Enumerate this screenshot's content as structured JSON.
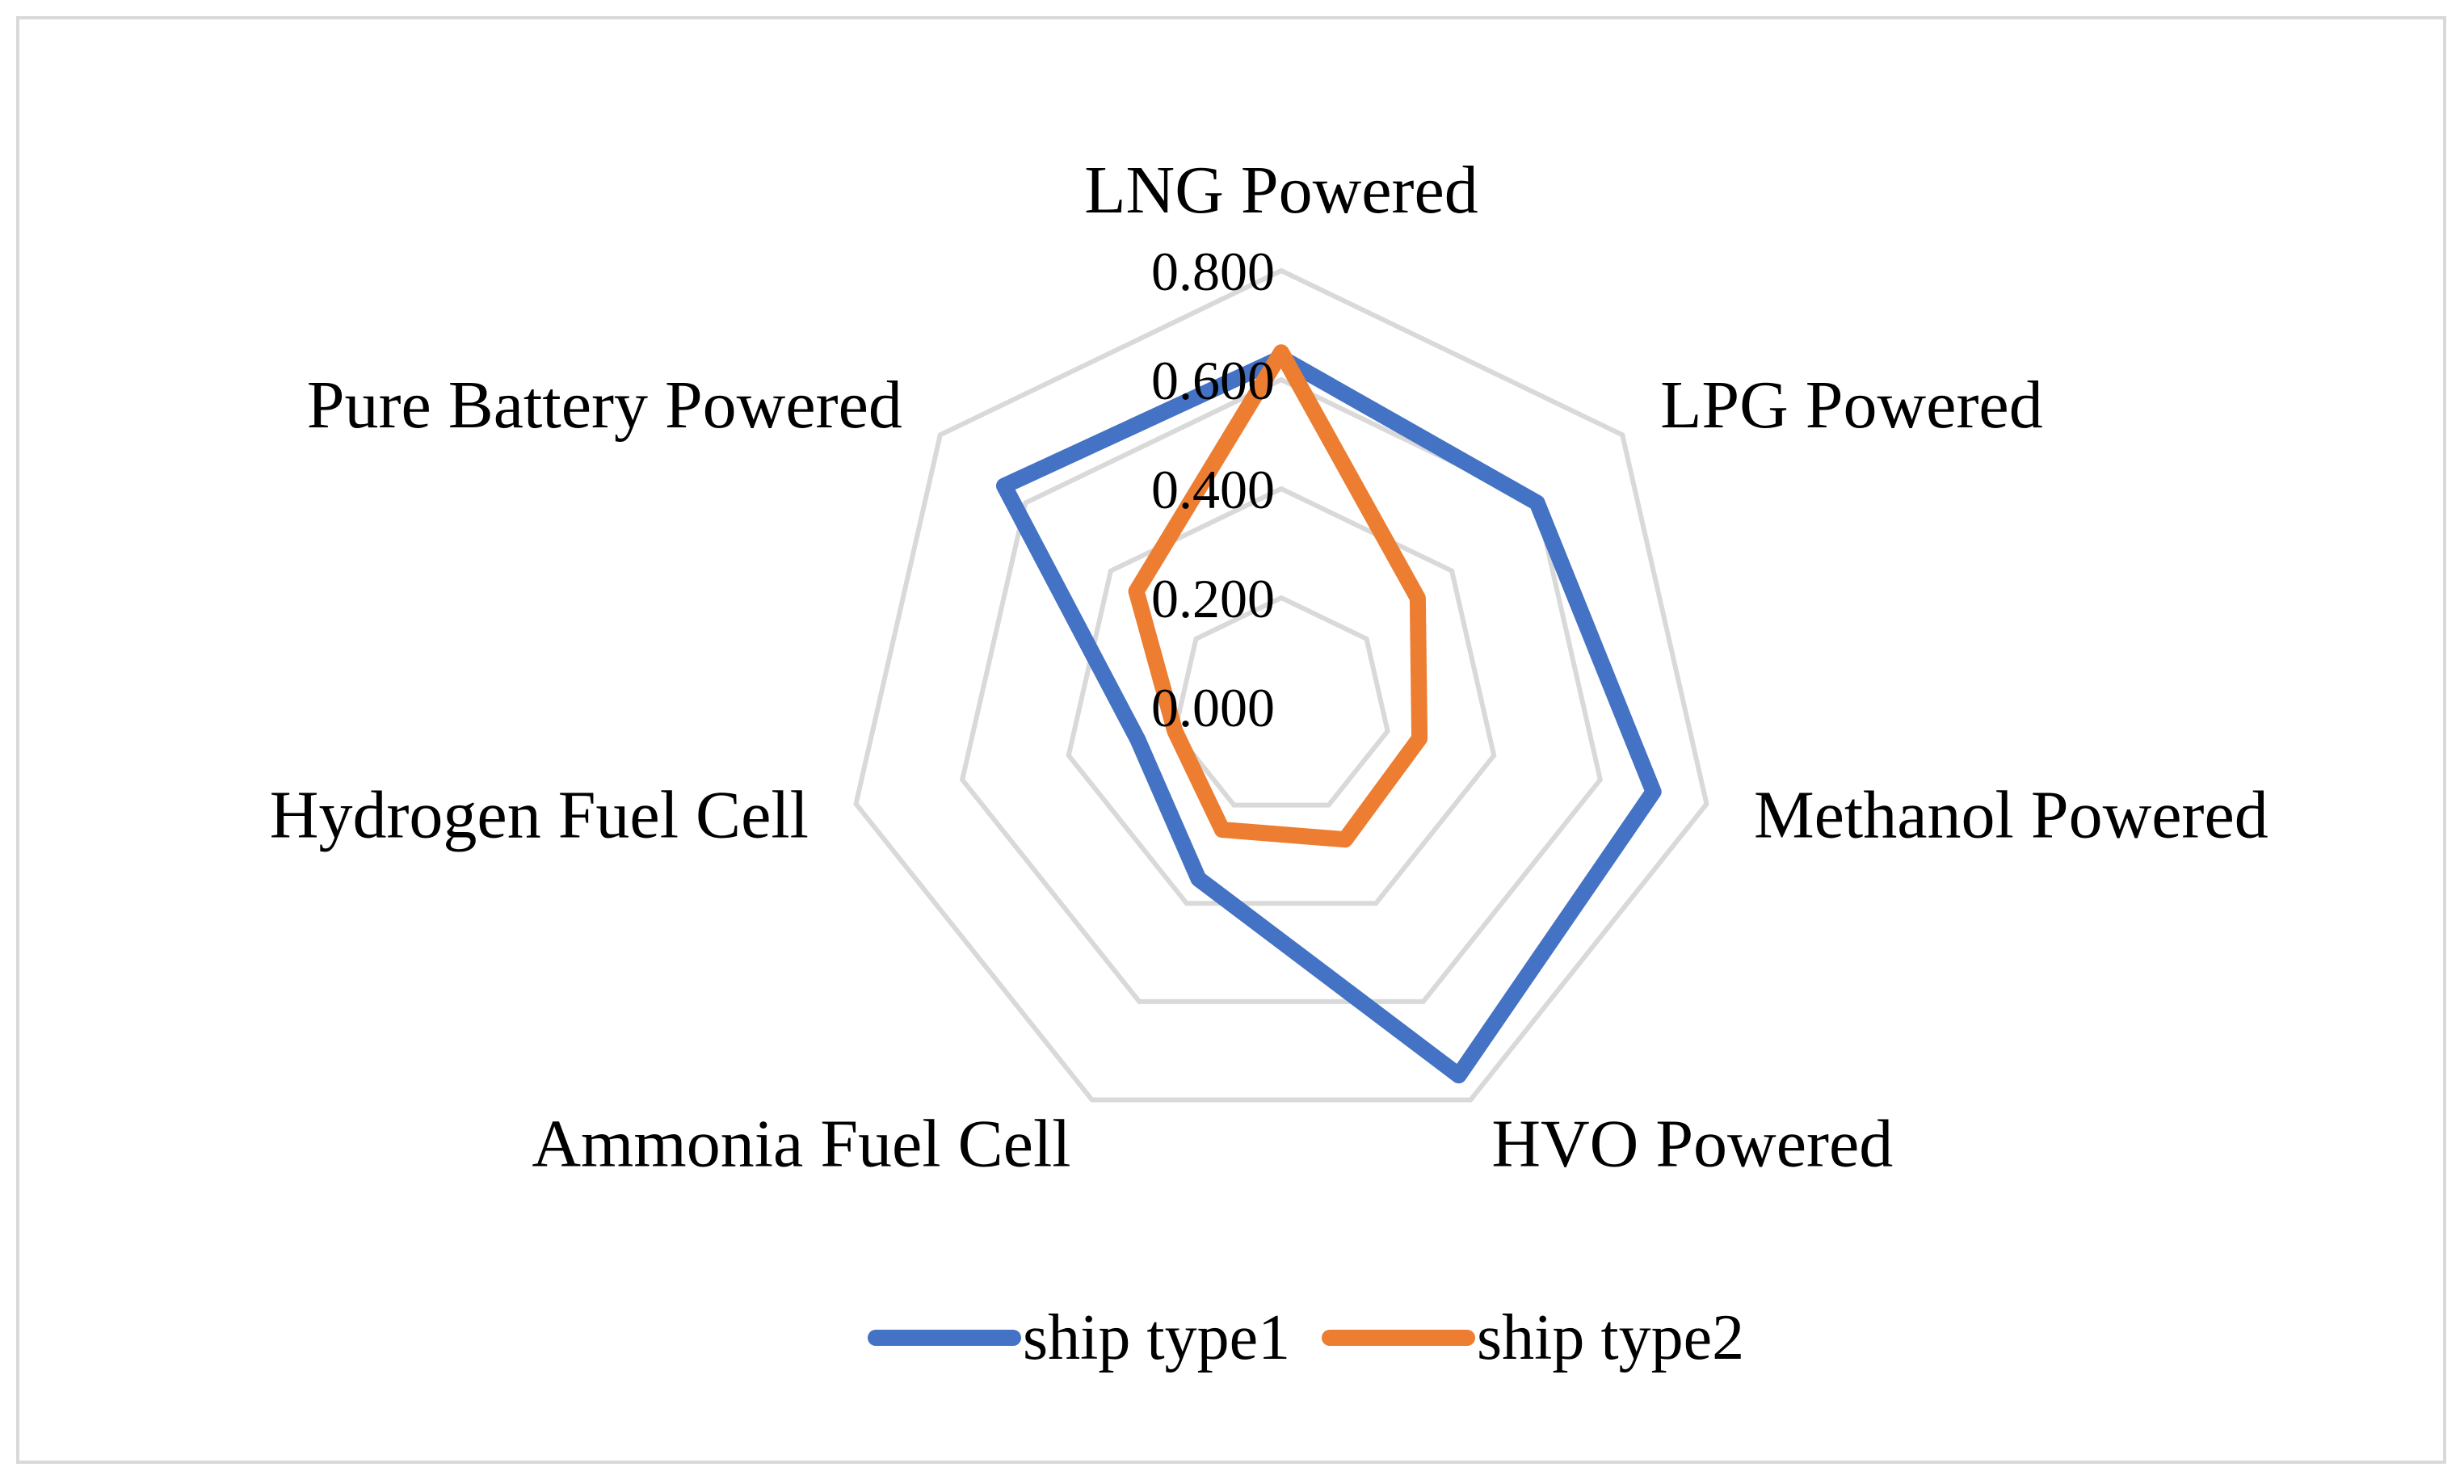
{
  "chart_data": {
    "type": "radar",
    "title": "",
    "categories": [
      "LNG Powered",
      "LPG Powered",
      "Methanol Powered",
      "HVO Powered",
      "Ammonia Fuel Cell",
      "Hydrogen Fuel Cell",
      "Pure Battery Powered"
    ],
    "axis": {
      "min": 0,
      "max": 0.8,
      "step": 0.2,
      "ticks": [
        "0.000",
        "0.200",
        "0.400",
        "0.600",
        "0.800"
      ]
    },
    "series": [
      {
        "name": "ship type1",
        "color": "#4472c4",
        "values": [
          0.64,
          0.6,
          0.7,
          0.75,
          0.35,
          0.27,
          0.65
        ]
      },
      {
        "name": "ship type2",
        "color": "#ed7d31",
        "values": [
          0.65,
          0.32,
          0.26,
          0.27,
          0.25,
          0.2,
          0.34
        ]
      }
    ],
    "legend_position": "bottom",
    "grid": true
  }
}
